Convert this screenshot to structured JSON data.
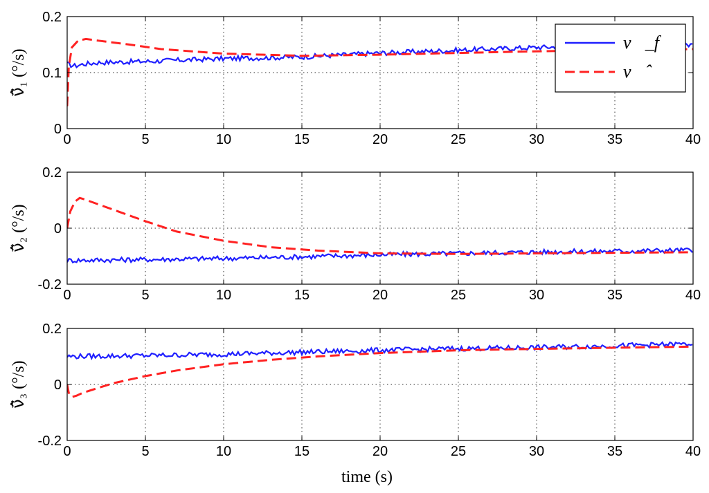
{
  "chart_data": {
    "type": "line",
    "xlabel": "time (s)",
    "xlim": [
      0,
      40
    ],
    "xticks": [
      0,
      5,
      10,
      15,
      20,
      25,
      30,
      35,
      40
    ],
    "grid": true,
    "legend": {
      "placement": "top-right",
      "entries": [
        {
          "name": "ν⃗_f",
          "style": "solid",
          "color": "#1f1fff"
        },
        {
          "name": "ν⃗̂",
          "style": "dashed",
          "color": "#ff2222"
        }
      ]
    },
    "panels": [
      {
        "ylabel": "ν⃗̂₁ (°/s)",
        "ylim": [
          0,
          0.2
        ],
        "yticks": [
          0,
          0.1,
          0.2
        ],
        "ytick_labels": [
          "0",
          "0.1",
          "0.2"
        ],
        "series": [
          {
            "name": "ν⃗_f",
            "style": "solid",
            "color": "#1f1fff",
            "x": [
              0,
              0.5,
              1,
              2,
              5,
              10,
              15,
              20,
              25,
              30,
              35,
              40
            ],
            "y": [
              0.115,
              0.112,
              0.115,
              0.118,
              0.12,
              0.125,
              0.128,
              0.135,
              0.14,
              0.145,
              0.148,
              0.15
            ]
          },
          {
            "name": "ν⃗̂",
            "style": "dashed",
            "color": "#ff2222",
            "x": [
              0,
              0.1,
              0.3,
              0.7,
              1.2,
              2,
              4,
              6,
              10,
              15,
              20,
              25,
              30,
              35,
              40
            ],
            "y": [
              0.04,
              0.11,
              0.145,
              0.157,
              0.16,
              0.157,
              0.15,
              0.142,
              0.134,
              0.13,
              0.132,
              0.135,
              0.138,
              0.14,
              0.142
            ]
          }
        ]
      },
      {
        "ylabel": "ν⃗̂₂ (°/s)",
        "ylim": [
          -0.2,
          0.2
        ],
        "yticks": [
          -0.2,
          0,
          0.2
        ],
        "ytick_labels": [
          "-0.2",
          "0",
          "0.2"
        ],
        "series": [
          {
            "name": "ν⃗_f",
            "style": "solid",
            "color": "#1f1fff",
            "x": [
              0,
              5,
              10,
              15,
              20,
              25,
              30,
              35,
              40
            ],
            "y": [
              -0.115,
              -0.112,
              -0.108,
              -0.102,
              -0.095,
              -0.09,
              -0.085,
              -0.082,
              -0.078
            ]
          },
          {
            "name": "ν⃗̂",
            "style": "dashed",
            "color": "#ff2222",
            "x": [
              0,
              0.2,
              0.5,
              0.8,
              1,
              2,
              3,
              5,
              7,
              10,
              13,
              16,
              20,
              25,
              30,
              35,
              40
            ],
            "y": [
              0.0,
              0.06,
              0.095,
              0.108,
              0.105,
              0.085,
              0.065,
              0.025,
              -0.012,
              -0.045,
              -0.068,
              -0.08,
              -0.09,
              -0.092,
              -0.09,
              -0.088,
              -0.086
            ]
          }
        ]
      },
      {
        "ylabel": "ν⃗̂₃ (°/s)",
        "ylim": [
          -0.2,
          0.2
        ],
        "yticks": [
          -0.2,
          0,
          0.2
        ],
        "ytick_labels": [
          "-0.2",
          "0",
          "0.2"
        ],
        "series": [
          {
            "name": "ν⃗_f",
            "style": "solid",
            "color": "#1f1fff",
            "x": [
              0,
              5,
              10,
              15,
              20,
              25,
              30,
              35,
              40
            ],
            "y": [
              0.1,
              0.103,
              0.108,
              0.115,
              0.122,
              0.128,
              0.132,
              0.138,
              0.145
            ]
          },
          {
            "name": "ν⃗̂",
            "style": "dashed",
            "color": "#ff2222",
            "x": [
              0,
              0.1,
              0.3,
              0.6,
              1,
              2,
              3,
              5,
              7,
              10,
              13,
              16,
              20,
              25,
              30,
              35,
              40
            ],
            "y": [
              0.0,
              -0.03,
              -0.045,
              -0.04,
              -0.03,
              -0.012,
              0.005,
              0.03,
              0.05,
              0.072,
              0.088,
              0.1,
              0.112,
              0.122,
              0.127,
              0.131,
              0.135
            ]
          }
        ]
      }
    ]
  }
}
